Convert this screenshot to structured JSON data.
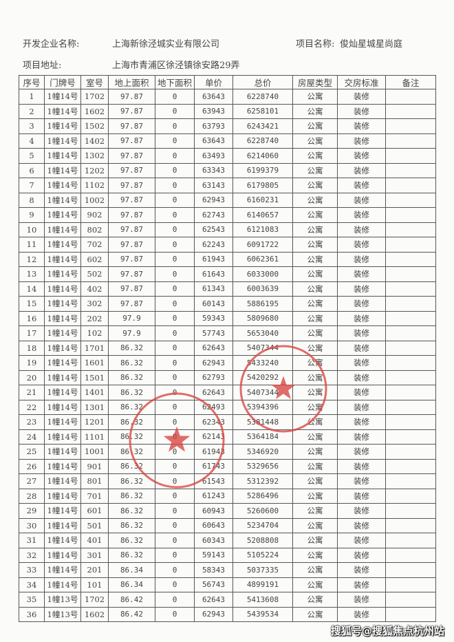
{
  "header": {
    "developer_label": "开发企业名称:",
    "developer": "上海新徐泾城实业有限公司",
    "project_label": "项目名称:",
    "project": "俊灿星城星尚庭",
    "address_label": "项目地址:",
    "address": "上海市青浦区徐泾镇徐安路29弄"
  },
  "table": {
    "columns": [
      "序号",
      "门牌号",
      "室号",
      "地上面积",
      "地下面积",
      "单价",
      "总价",
      "房屋类型",
      "交房标准",
      "备注"
    ],
    "rows": [
      [
        "1",
        "1幢14号",
        "1702",
        "97.87",
        "0",
        "63643",
        "6228740",
        "公寓",
        "装修",
        ""
      ],
      [
        "2",
        "1幢14号",
        "1602",
        "97.87",
        "0",
        "63943",
        "6258101",
        "公寓",
        "装修",
        ""
      ],
      [
        "3",
        "1幢14号",
        "1502",
        "97.87",
        "0",
        "63793",
        "6243421",
        "公寓",
        "装修",
        ""
      ],
      [
        "4",
        "1幢14号",
        "1402",
        "97.87",
        "0",
        "63643",
        "6228740",
        "公寓",
        "装修",
        ""
      ],
      [
        "5",
        "1幢14号",
        "1302",
        "97.87",
        "0",
        "63493",
        "6214060",
        "公寓",
        "装修",
        ""
      ],
      [
        "6",
        "1幢14号",
        "1202",
        "97.87",
        "0",
        "63343",
        "6199379",
        "公寓",
        "装修",
        ""
      ],
      [
        "7",
        "1幢14号",
        "1102",
        "97.87",
        "0",
        "63143",
        "6179805",
        "公寓",
        "装修",
        ""
      ],
      [
        "8",
        "1幢14号",
        "1002",
        "97.87",
        "0",
        "62943",
        "6160231",
        "公寓",
        "装修",
        ""
      ],
      [
        "9",
        "1幢14号",
        "902",
        "97.87",
        "0",
        "62743",
        "6140657",
        "公寓",
        "装修",
        ""
      ],
      [
        "10",
        "1幢14号",
        "802",
        "97.87",
        "0",
        "62543",
        "6121083",
        "公寓",
        "装修",
        ""
      ],
      [
        "11",
        "1幢14号",
        "702",
        "97.87",
        "0",
        "62243",
        "6091722",
        "公寓",
        "装修",
        ""
      ],
      [
        "12",
        "1幢14号",
        "602",
        "97.87",
        "0",
        "61943",
        "6062361",
        "公寓",
        "装修",
        ""
      ],
      [
        "13",
        "1幢14号",
        "502",
        "97.87",
        "0",
        "61643",
        "6033000",
        "公寓",
        "装修",
        ""
      ],
      [
        "14",
        "1幢14号",
        "402",
        "97.87",
        "0",
        "61343",
        "6003639",
        "公寓",
        "装修",
        ""
      ],
      [
        "15",
        "1幢14号",
        "302",
        "97.87",
        "0",
        "60143",
        "5886195",
        "公寓",
        "装修",
        ""
      ],
      [
        "16",
        "1幢14号",
        "202",
        "97.9",
        "0",
        "59343",
        "5809680",
        "公寓",
        "装修",
        ""
      ],
      [
        "17",
        "1幢14号",
        "102",
        "97.9",
        "0",
        "57743",
        "5653040",
        "公寓",
        "装修",
        ""
      ],
      [
        "18",
        "1幢14号",
        "1701",
        "86.32",
        "0",
        "62643",
        "5407344",
        "公寓",
        "装修",
        ""
      ],
      [
        "19",
        "1幢14号",
        "1601",
        "86.32",
        "0",
        "62943",
        "5433240",
        "公寓",
        "装修",
        ""
      ],
      [
        "20",
        "1幢14号",
        "1501",
        "86.32",
        "0",
        "62793",
        "5420292",
        "公寓",
        "装修",
        ""
      ],
      [
        "21",
        "1幢14号",
        "1401",
        "86.32",
        "0",
        "62643",
        "5407344",
        "公寓",
        "装修",
        ""
      ],
      [
        "22",
        "1幢14号",
        "1301",
        "86.32",
        "0",
        "62493",
        "5394396",
        "公寓",
        "装修",
        ""
      ],
      [
        "23",
        "1幢14号",
        "1201",
        "86.32",
        "0",
        "62343",
        "5381448",
        "公寓",
        "装修",
        ""
      ],
      [
        "24",
        "1幢14号",
        "1101",
        "86.32",
        "0",
        "62143",
        "5364184",
        "公寓",
        "装修",
        ""
      ],
      [
        "25",
        "1幢14号",
        "1001",
        "86.32",
        "0",
        "61943",
        "5346920",
        "公寓",
        "装修",
        ""
      ],
      [
        "26",
        "1幢14号",
        "901",
        "86.32",
        "0",
        "61743",
        "5329656",
        "公寓",
        "装修",
        ""
      ],
      [
        "27",
        "1幢14号",
        "801",
        "86.32",
        "0",
        "61543",
        "5312392",
        "公寓",
        "装修",
        ""
      ],
      [
        "28",
        "1幢14号",
        "701",
        "86.32",
        "0",
        "61243",
        "5286496",
        "公寓",
        "装修",
        ""
      ],
      [
        "29",
        "1幢14号",
        "601",
        "86.32",
        "0",
        "60943",
        "5260600",
        "公寓",
        "装修",
        ""
      ],
      [
        "30",
        "1幢14号",
        "501",
        "86.32",
        "0",
        "60643",
        "5234704",
        "公寓",
        "装修",
        ""
      ],
      [
        "31",
        "1幢14号",
        "401",
        "86.32",
        "0",
        "60343",
        "5208808",
        "公寓",
        "装修",
        ""
      ],
      [
        "32",
        "1幢14号",
        "301",
        "86.32",
        "0",
        "59143",
        "5105224",
        "公寓",
        "装修",
        ""
      ],
      [
        "33",
        "1幢14号",
        "201",
        "86.34",
        "0",
        "58343",
        "5037335",
        "公寓",
        "装修",
        ""
      ],
      [
        "34",
        "1幢14号",
        "101",
        "86.34",
        "0",
        "56743",
        "4899191",
        "公寓",
        "装修",
        ""
      ],
      [
        "35",
        "1幢13号",
        "1702",
        "86.42",
        "0",
        "62643",
        "5413608",
        "公寓",
        "装修",
        ""
      ],
      [
        "36",
        "1幢13号",
        "1602",
        "86.42",
        "0",
        "62943",
        "5439534",
        "公寓",
        "装修",
        ""
      ]
    ]
  },
  "stamps": {
    "color": "#d9443f"
  },
  "watermark": "搜狐号@搜狐焦点杭州站"
}
